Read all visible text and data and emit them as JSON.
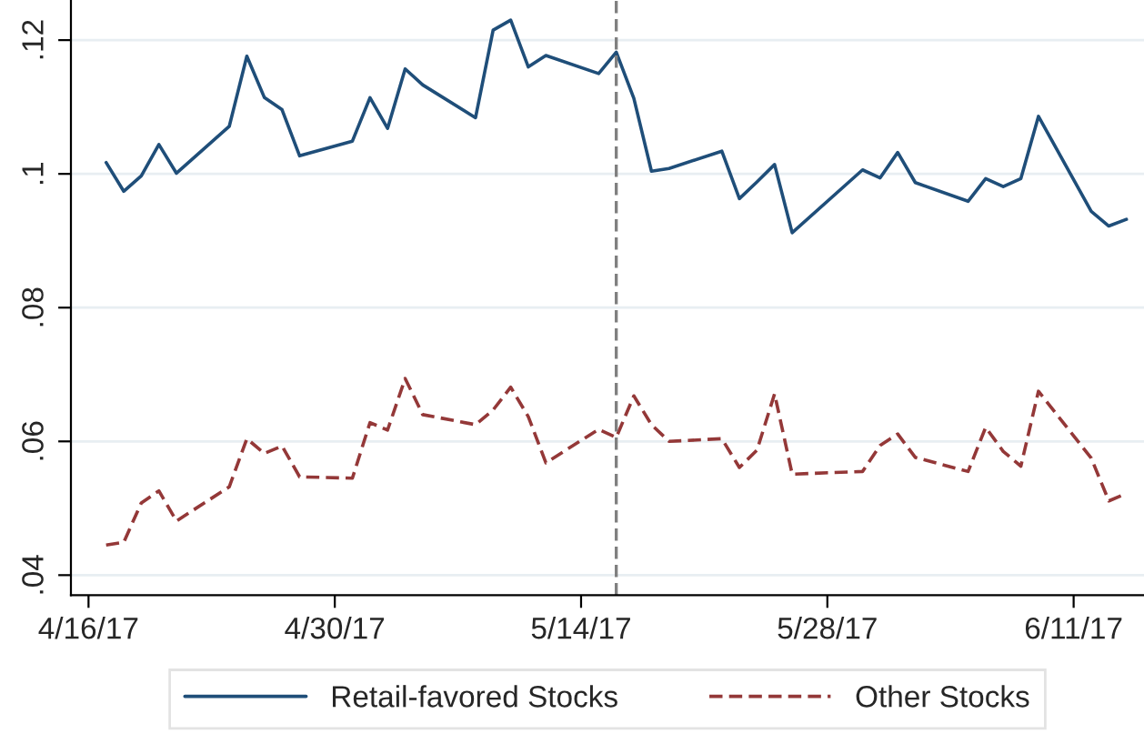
{
  "chart_data": {
    "type": "line",
    "x": [
      "2017-04-17",
      "2017-04-18",
      "2017-04-19",
      "2017-04-20",
      "2017-04-21",
      "2017-04-24",
      "2017-04-25",
      "2017-04-26",
      "2017-04-27",
      "2017-04-28",
      "2017-05-01",
      "2017-05-02",
      "2017-05-03",
      "2017-05-04",
      "2017-05-05",
      "2017-05-08",
      "2017-05-09",
      "2017-05-10",
      "2017-05-11",
      "2017-05-12",
      "2017-05-15",
      "2017-05-16",
      "2017-05-17",
      "2017-05-18",
      "2017-05-19",
      "2017-05-22",
      "2017-05-23",
      "2017-05-24",
      "2017-05-25",
      "2017-05-26",
      "2017-05-30",
      "2017-05-31",
      "2017-06-01",
      "2017-06-02",
      "2017-06-05",
      "2017-06-06",
      "2017-06-07",
      "2017-06-08",
      "2017-06-09",
      "2017-06-12",
      "2017-06-13",
      "2017-06-14"
    ],
    "series": [
      {
        "name": "Retail-favored Stocks",
        "color": "#1f4e79",
        "line_style": "solid",
        "values": [
          0.1017,
          0.0974,
          0.0997,
          0.1044,
          0.1001,
          0.1071,
          0.1176,
          0.1114,
          0.1096,
          0.1027,
          0.1049,
          0.1114,
          0.1068,
          0.1157,
          0.1133,
          0.1084,
          0.1215,
          0.123,
          0.116,
          0.1177,
          0.115,
          0.1182,
          0.1113,
          0.1004,
          0.1008,
          0.1034,
          0.0963,
          0.0988,
          0.1014,
          0.0912,
          0.1006,
          0.0994,
          0.1032,
          0.0987,
          0.0959,
          0.0993,
          0.0981,
          0.0993,
          0.1086,
          0.0944,
          0.0922,
          0.0932
        ]
      },
      {
        "name": "Other Stocks",
        "color": "#943838",
        "line_style": "dashed",
        "values": [
          0.0445,
          0.0449,
          0.0508,
          0.0526,
          0.0481,
          0.0532,
          0.0604,
          0.0582,
          0.0593,
          0.0547,
          0.0545,
          0.0628,
          0.0617,
          0.0694,
          0.064,
          0.0625,
          0.0647,
          0.0681,
          0.0637,
          0.0568,
          0.0618,
          0.0606,
          0.0668,
          0.0625,
          0.06,
          0.0604,
          0.0561,
          0.0587,
          0.0671,
          0.0551,
          0.0555,
          0.0594,
          0.0611,
          0.0576,
          0.0555,
          0.0621,
          0.0585,
          0.0563,
          0.0675,
          0.0575,
          0.0511,
          0.0522
        ]
      }
    ],
    "xlim": [
      "2017-04-15",
      "2017-06-15"
    ],
    "xticks": [
      {
        "value": "2017-04-16",
        "label": "4/16/17"
      },
      {
        "value": "2017-04-30",
        "label": "4/30/17"
      },
      {
        "value": "2017-05-14",
        "label": "5/14/17"
      },
      {
        "value": "2017-05-28",
        "label": "5/28/17"
      },
      {
        "value": "2017-06-11",
        "label": "6/11/17"
      }
    ],
    "ylim": [
      0.037,
      0.126
    ],
    "yticks": [
      {
        "value": 0.04,
        "label": ".04"
      },
      {
        "value": 0.06,
        "label": ".06"
      },
      {
        "value": 0.08,
        "label": ".08"
      },
      {
        "value": 0.1,
        "label": ".1"
      },
      {
        "value": 0.12,
        "label": ".12"
      }
    ],
    "ref_lines": [
      {
        "axis": "x",
        "value": "2017-05-16",
        "color": "#808080",
        "line_style": "dashed"
      }
    ],
    "grid": "y",
    "legend": "bottom"
  }
}
